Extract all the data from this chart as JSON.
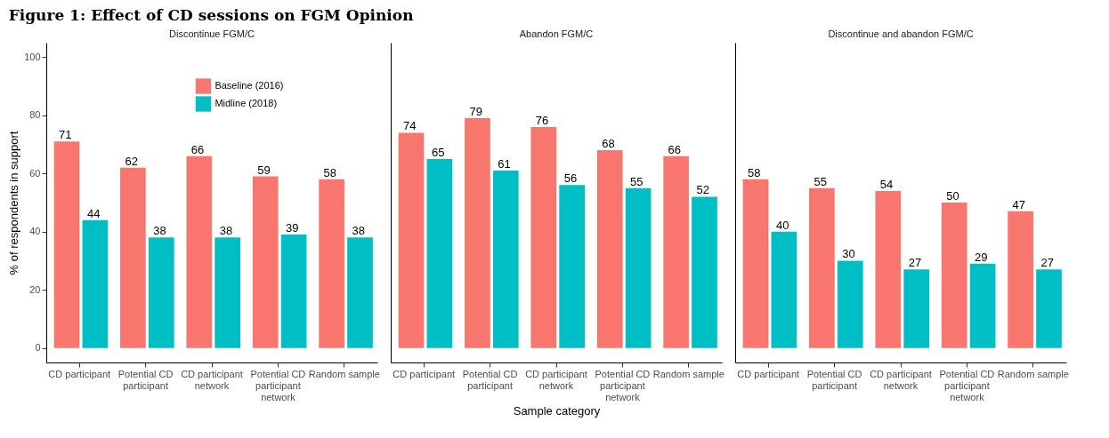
{
  "chart_data": [
    {
      "type": "bar",
      "title": "Discontinue FGM/C",
      "ylabel": "% of respondents in support",
      "annotations": [
        "Figure 1: Effect of CD sessions on FGM Opinion"
      ],
      "categories": [
        "CD participant",
        "Potential CD participant",
        "CD participant network",
        "Potential CD participant network",
        "Random sample"
      ],
      "series": [
        {
          "name": "Baseline (2016)",
          "color": "#f8766d",
          "values": [
            71,
            62,
            66,
            59,
            58
          ]
        },
        {
          "name": "Midline (2018)",
          "color": "#00bfc4",
          "values": [
            44,
            38,
            38,
            39,
            38
          ]
        }
      ],
      "ylim": [
        -5,
        105
      ],
      "yticks": [
        0,
        20,
        40,
        60,
        80,
        100
      ],
      "data_labels": true,
      "legend": "top",
      "grid": false
    },
    {
      "type": "bar",
      "title": "Abandon FGM/C",
      "xlabel": "Sample category",
      "categories": [
        "CD participant",
        "Potential CD participant",
        "CD participant network",
        "Potential CD participant network",
        "Random sample"
      ],
      "series": [
        {
          "name": "Baseline (2016)",
          "color": "#f8766d",
          "values": [
            74,
            79,
            76,
            68,
            66
          ]
        },
        {
          "name": "Midline (2018)",
          "color": "#00bfc4",
          "values": [
            65,
            61,
            56,
            55,
            52
          ]
        }
      ],
      "ylim": [
        -5,
        105
      ],
      "yticks": [
        0,
        20,
        40,
        60,
        80,
        100
      ],
      "data_labels": true,
      "tick_labels": "x",
      "grid": false
    },
    {
      "type": "bar",
      "title": "Discontinue and abandon FGM/C",
      "categories": [
        "CD participant",
        "Potential CD participant",
        "CD participant network",
        "Potential CD participant network",
        "Random sample"
      ],
      "series": [
        {
          "name": "Baseline (2016)",
          "color": "#f8766d",
          "values": [
            58,
            55,
            54,
            50,
            47
          ]
        },
        {
          "name": "Midline (2018)",
          "color": "#00bfc4",
          "values": [
            40,
            30,
            27,
            29,
            27
          ]
        }
      ],
      "ylim": [
        -5,
        105
      ],
      "yticks": [
        0,
        20,
        40,
        60,
        80,
        100
      ],
      "data_labels": true,
      "tick_labels": "x",
      "grid": false
    }
  ]
}
